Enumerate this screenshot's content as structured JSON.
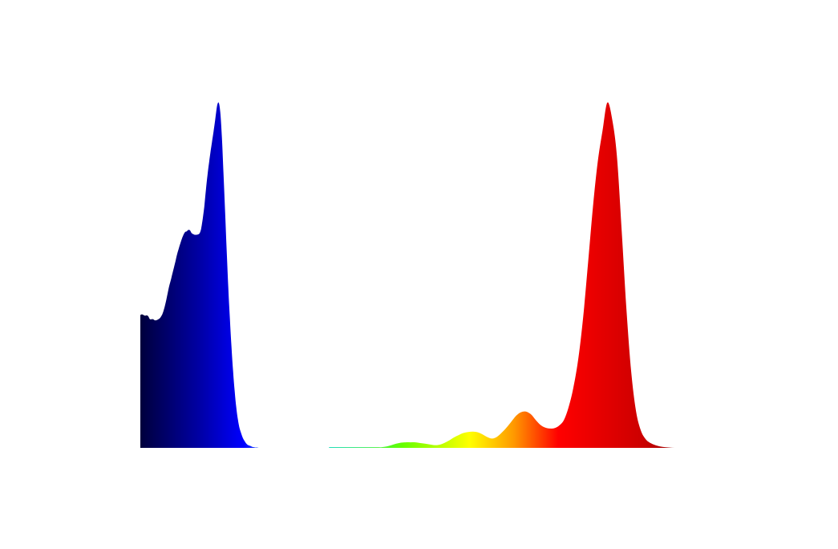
{
  "chart_data": {
    "type": "area",
    "grid": false,
    "legend": "none",
    "x_unit": "",
    "ylim": [
      0,
      1
    ],
    "series": [
      {
        "gradient": [
          {
            "at": 0,
            "color": "#00003c"
          },
          {
            "at": 0.45,
            "color": "#0000aa"
          },
          {
            "at": 0.75,
            "color": "#0000ff"
          },
          {
            "at": 1,
            "color": "#3399ff"
          }
        ],
        "x": [
          0,
          2,
          4,
          6,
          8,
          10,
          12,
          14,
          16,
          18,
          20,
          22,
          24,
          26,
          28,
          30,
          32,
          34,
          36,
          38,
          40,
          42,
          44,
          46,
          48,
          50,
          52,
          54,
          56,
          58,
          60,
          62,
          64,
          66,
          68,
          70,
          72,
          74,
          76,
          78,
          80,
          82,
          84,
          86,
          88,
          90,
          92,
          94,
          96,
          98,
          100,
          102,
          104,
          106,
          108,
          110,
          112,
          114,
          116,
          118,
          120,
          122,
          124,
          126,
          128,
          130,
          132,
          134,
          136,
          138,
          140,
          142,
          144,
          146,
          148,
          150,
          152,
          154,
          156,
          158,
          160,
          162,
          164,
          166,
          168,
          170,
          172
        ],
        "y": [
          0.384,
          0.386,
          0.384,
          0.382,
          0.383,
          0.38,
          0.372,
          0.372,
          0.372,
          0.369,
          0.369,
          0.371,
          0.374,
          0.38,
          0.389,
          0.404,
          0.423,
          0.445,
          0.467,
          0.484,
          0.503,
          0.521,
          0.54,
          0.56,
          0.576,
          0.591,
          0.605,
          0.616,
          0.624,
          0.626,
          0.63,
          0.629,
          0.621,
          0.618,
          0.616,
          0.616,
          0.617,
          0.62,
          0.633,
          0.662,
          0.698,
          0.746,
          0.789,
          0.826,
          0.859,
          0.89,
          0.921,
          0.955,
          0.989,
          0.998,
          0.97,
          0.898,
          0.793,
          0.683,
          0.569,
          0.463,
          0.373,
          0.291,
          0.221,
          0.163,
          0.116,
          0.082,
          0.058,
          0.043,
          0.03,
          0.021,
          0.014,
          0.009,
          0.007,
          0.005,
          0.003,
          0.002,
          0.001,
          0.001,
          0.0,
          0.0,
          0.0,
          0.0,
          0.0,
          0.0,
          0.0,
          0.0,
          0.0,
          0.0,
          0.0,
          0.0,
          0.0
        ]
      },
      {
        "gradient": [
          {
            "at": 0,
            "color": "#00d8b0"
          },
          {
            "at": 0.2,
            "color": "#66ff00"
          },
          {
            "at": 0.38,
            "color": "#ffff00"
          },
          {
            "at": 0.5,
            "color": "#ff9900"
          },
          {
            "at": 0.62,
            "color": "#ff0000"
          },
          {
            "at": 0.85,
            "color": "#cc0000"
          },
          {
            "at": 1,
            "color": "#7a0000"
          }
        ],
        "x": [
          236,
          242,
          248,
          254,
          260,
          266,
          272,
          278,
          284,
          290,
          296,
          302,
          308,
          314,
          320,
          326,
          332,
          338,
          344,
          350,
          356,
          362,
          368,
          374,
          380,
          386,
          392,
          398,
          404,
          410,
          416,
          422,
          428,
          434,
          440,
          446,
          452,
          458,
          464,
          470,
          476,
          482,
          488,
          494,
          500,
          506,
          512,
          518,
          524,
          530,
          536,
          542,
          548,
          554,
          560,
          566,
          572,
          578,
          584,
          590,
          596,
          602,
          608,
          614,
          620,
          626,
          632,
          638,
          644,
          650,
          656,
          662,
          668,
          674,
          680,
          686,
          692,
          698
        ],
        "y": [
          0.002,
          0.002,
          0.002,
          0.002,
          0.002,
          0.002,
          0.002,
          0.002,
          0.002,
          0.002,
          0.002,
          0.002,
          0.004,
          0.008,
          0.012,
          0.015,
          0.016,
          0.016,
          0.016,
          0.014,
          0.012,
          0.01,
          0.008,
          0.009,
          0.014,
          0.021,
          0.03,
          0.037,
          0.043,
          0.046,
          0.047,
          0.045,
          0.039,
          0.031,
          0.027,
          0.032,
          0.044,
          0.059,
          0.076,
          0.093,
          0.103,
          0.105,
          0.098,
          0.082,
          0.067,
          0.059,
          0.056,
          0.057,
          0.065,
          0.082,
          0.121,
          0.179,
          0.262,
          0.382,
          0.537,
          0.696,
          0.827,
          0.916,
          0.998,
          0.951,
          0.843,
          0.626,
          0.396,
          0.218,
          0.105,
          0.05,
          0.025,
          0.014,
          0.008,
          0.004,
          0.002,
          0.001,
          0.0,
          0.0,
          0.0,
          0.0,
          0.0,
          0.0
        ]
      }
    ]
  }
}
